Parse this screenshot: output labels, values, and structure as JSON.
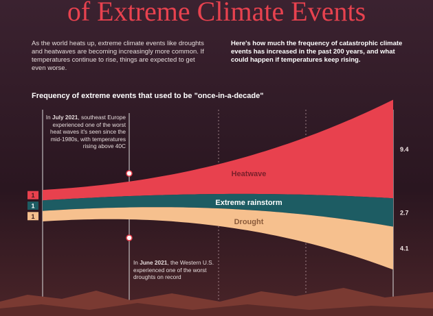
{
  "chart_data": {
    "type": "stream",
    "title": "of Extreme Climate Events",
    "intro": "As the world heats up, extreme climate events like droughts and heatwaves are becoming increasingly more common. If temperatures continue to rise, things are expected to get even worse.",
    "description": "Here's how much the frequency of catastrophic climate events has increased in the past 200 years, and what could happen if temperatures keep rising.",
    "subtitle": "Frequency of extreme events that used to be \"once-in-a-decade\"",
    "categories": [
      null,
      null
    ],
    "series": [
      {
        "name": "Heatwave",
        "color": "#e8414e",
        "values": [
          1,
          9.4
        ]
      },
      {
        "name": "Extreme rainstorm",
        "color": "#1d5c63",
        "values": [
          1,
          2.7
        ]
      },
      {
        "name": "Drought",
        "color": "#f6c08e",
        "values": [
          1,
          4.1
        ]
      }
    ],
    "annotations": [
      {
        "before": "In ",
        "date": "July 2021",
        "after": ", southeast Europe experienced one of the worst heat waves it's seen since the mid-1980s, with temperatures rising above 40C"
      },
      {
        "before": "In ",
        "date": "June 2021",
        "after": ", the Western U.S. experienced one of the worst droughts on record"
      }
    ]
  }
}
